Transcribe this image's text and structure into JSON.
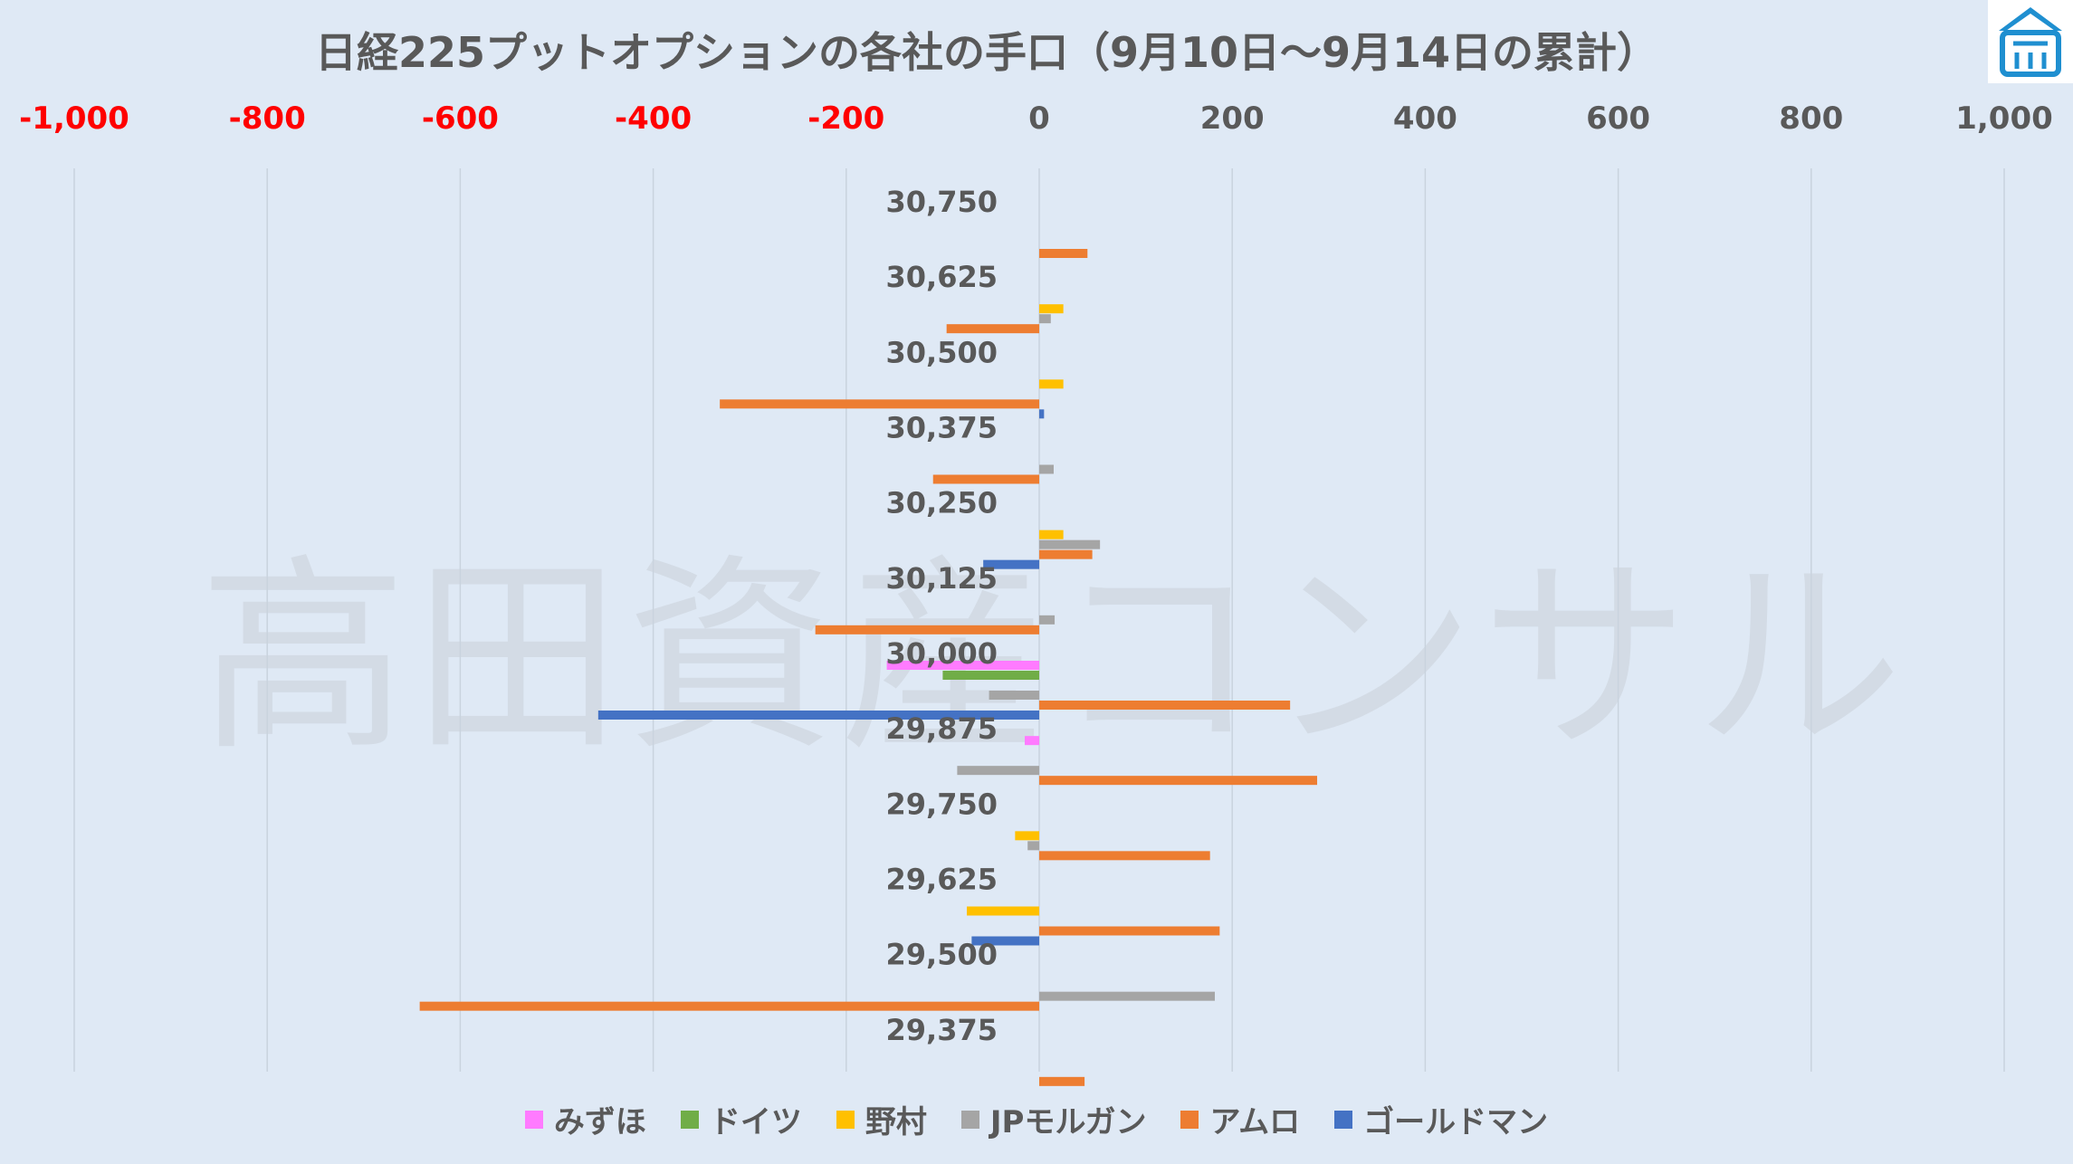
{
  "chart_data": {
    "type": "bar",
    "orientation": "horizontal",
    "title": "日経225プットオプションの各社の手口（9月10日～9月14日の累計）",
    "watermark": "高田資産コンサル",
    "xlim": [
      -1000,
      1000
    ],
    "x_ticks": [
      -1000,
      -800,
      -600,
      -400,
      -200,
      0,
      200,
      400,
      600,
      800,
      1000
    ],
    "x_tick_labels": [
      "-1,000",
      "-800",
      "-600",
      "-400",
      "-200",
      "0",
      "200",
      "400",
      "600",
      "800",
      "1,000"
    ],
    "negative_tick_color": "#ff0000",
    "positive_tick_color": "#595959",
    "grid": "vertical",
    "legend_position": "bottom",
    "categories": [
      "30,750",
      "30,625",
      "30,500",
      "30,375",
      "30,250",
      "30,125",
      "30,000",
      "29,875",
      "29,750",
      "29,625",
      "29,500",
      "29,375"
    ],
    "series": [
      {
        "name": "みずほ",
        "color": "#ff7bff",
        "values": [
          0,
          0,
          0,
          0,
          0,
          0,
          -158,
          -15,
          0,
          0,
          0,
          0
        ]
      },
      {
        "name": "ドイツ",
        "color": "#70ad47",
        "values": [
          0,
          0,
          0,
          0,
          0,
          0,
          -100,
          0,
          0,
          0,
          0,
          0
        ]
      },
      {
        "name": "野村",
        "color": "#ffc000",
        "values": [
          0,
          25,
          25,
          0,
          25,
          0,
          0,
          0,
          -25,
          -75,
          0,
          0
        ]
      },
      {
        "name": "JPモルガン",
        "color": "#a5a5a5",
        "values": [
          0,
          12,
          0,
          15,
          63,
          16,
          -52,
          -85,
          -12,
          0,
          182,
          0
        ]
      },
      {
        "name": "アムロ",
        "color": "#ed7d31",
        "values": [
          50,
          -96,
          -331,
          -110,
          55,
          -232,
          260,
          288,
          177,
          187,
          -642,
          47
        ]
      },
      {
        "name": "ゴールドマン",
        "color": "#4472c4",
        "values": [
          0,
          0,
          5,
          0,
          -58,
          0,
          -457,
          0,
          0,
          -70,
          0,
          0
        ]
      }
    ]
  }
}
